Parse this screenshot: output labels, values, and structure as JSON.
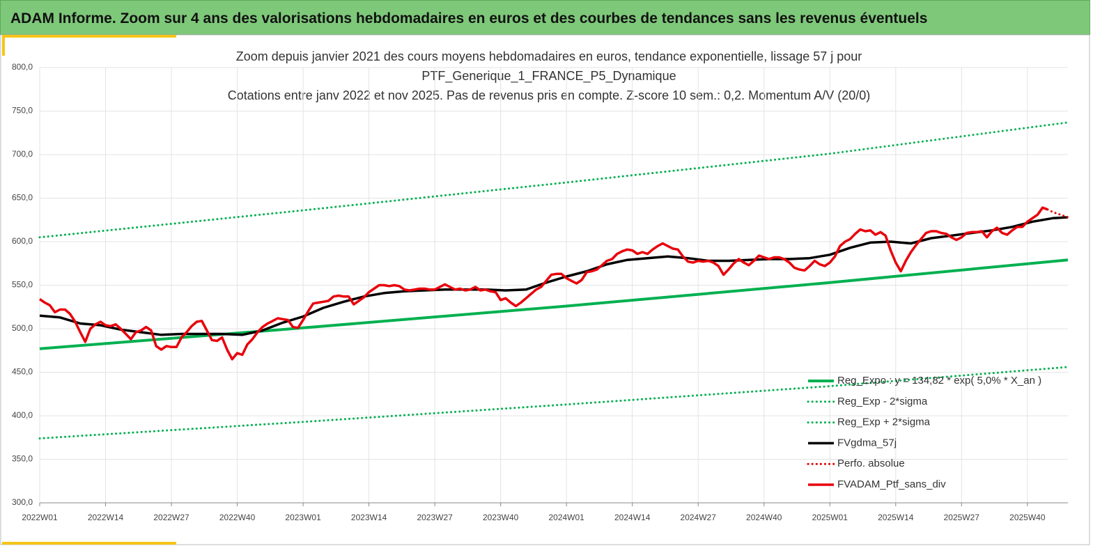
{
  "header": {
    "title": "ADAM Informe. Zoom sur 4 ans des valorisations hebdomadaires en euros et des courbes de tendances sans les revenus éventuels"
  },
  "chart_data": {
    "type": "line",
    "title": [
      "Zoom depuis janvier 2021 des cours moyens hebdomadaires  en euros, tendance exponentielle, lissage 57 j pour",
      "PTF_Generique_1_FRANCE_P5_Dynamique",
      "Cotations  entre janv 2022 et nov 2025. Pas de revenus pris en compte. Z-score 10 sem.: 0,2. Momentum A/V (20/0)"
    ],
    "xlim": [
      0,
      203
    ],
    "xticks": [
      {
        "value": 0,
        "label": "2022W01"
      },
      {
        "value": 13,
        "label": "2022W14"
      },
      {
        "value": 26,
        "label": "2022W27"
      },
      {
        "value": 39,
        "label": "2022W40"
      },
      {
        "value": 52,
        "label": "2023W01"
      },
      {
        "value": 65,
        "label": "2023W14"
      },
      {
        "value": 78,
        "label": "2023W27"
      },
      {
        "value": 91,
        "label": "2023W40"
      },
      {
        "value": 104,
        "label": "2024W01"
      },
      {
        "value": 117,
        "label": "2024W14"
      },
      {
        "value": 130,
        "label": "2024W27"
      },
      {
        "value": 143,
        "label": "2024W40"
      },
      {
        "value": 156,
        "label": "2025W01"
      },
      {
        "value": 169,
        "label": "2025W14"
      },
      {
        "value": 182,
        "label": "2025W27"
      },
      {
        "value": 195,
        "label": "2025W40"
      }
    ],
    "ylim": [
      300,
      800
    ],
    "yticks": [
      {
        "value": 300,
        "label": "300,0"
      },
      {
        "value": 350,
        "label": "350,0"
      },
      {
        "value": 400,
        "label": "400,0"
      },
      {
        "value": 450,
        "label": "450,0"
      },
      {
        "value": 500,
        "label": "500,0"
      },
      {
        "value": 550,
        "label": "550,0"
      },
      {
        "value": 600,
        "label": "600,0"
      },
      {
        "value": 650,
        "label": "650,0"
      },
      {
        "value": 700,
        "label": "700,0"
      },
      {
        "value": 750,
        "label": "750,0"
      },
      {
        "value": 800,
        "label": "800,0"
      }
    ],
    "grid": true,
    "legend": "bottom-right",
    "series": [
      {
        "name": "Reg_Expo : y = 134,82 * exp( 5,0% *  X_an )",
        "color": "#00b050",
        "style": "solid",
        "x": [
          0,
          52,
          104,
          156,
          203
        ],
        "values": [
          477,
          501,
          526,
          553,
          579
        ]
      },
      {
        "name": "Reg_Exp - 2*sigma",
        "color": "#00b050",
        "style": "dotted",
        "x": [
          0,
          52,
          104,
          156,
          203
        ],
        "values": [
          374,
          393,
          413,
          434,
          456
        ]
      },
      {
        "name": "Reg_Exp + 2*sigma",
        "color": "#00b050",
        "style": "dotted",
        "x": [
          0,
          52,
          104,
          156,
          203
        ],
        "values": [
          605,
          636,
          668,
          701,
          737
        ]
      },
      {
        "name": "FVgdma_57j",
        "color": "#000000",
        "style": "solid",
        "x": [
          0,
          4,
          8,
          12,
          16,
          20,
          24,
          28,
          32,
          36,
          40,
          44,
          48,
          52,
          56,
          60,
          64,
          68,
          72,
          76,
          80,
          84,
          88,
          92,
          96,
          100,
          104,
          108,
          112,
          116,
          120,
          124,
          128,
          132,
          136,
          140,
          144,
          148,
          152,
          156,
          160,
          164,
          168,
          172,
          176,
          180,
          184,
          188,
          192,
          196,
          200,
          203
        ],
        "values": [
          515,
          513,
          506,
          504,
          499,
          496,
          493,
          494,
          494,
          494,
          493,
          498,
          507,
          514,
          524,
          531,
          537,
          541,
          543,
          544,
          545,
          545,
          545,
          544,
          545,
          553,
          560,
          566,
          574,
          579,
          581,
          583,
          581,
          578,
          578,
          579,
          580,
          580,
          581,
          585,
          593,
          599,
          600,
          598,
          604,
          607,
          610,
          613,
          617,
          623,
          627,
          628
        ]
      },
      {
        "name": "Perfo. absolue",
        "color": "#e00000",
        "style": "dotted",
        "x": [
          199,
          200,
          201,
          202,
          203
        ],
        "values": [
          637,
          634,
          632,
          630,
          628
        ]
      },
      {
        "name": "FVADAM_Ptf_sans_div",
        "color": "#e8000b",
        "style": "solid",
        "values": [
          534,
          530,
          527,
          519,
          522,
          522,
          517,
          508,
          496,
          485,
          500,
          505,
          508,
          504,
          503,
          505,
          500,
          494,
          488,
          496,
          498,
          502,
          498,
          480,
          476,
          480,
          479,
          479,
          490,
          496,
          503,
          508,
          509,
          498,
          487,
          486,
          490,
          476,
          465,
          472,
          470,
          482,
          488,
          496,
          502,
          506,
          509,
          512,
          511,
          510,
          502,
          501,
          510,
          520,
          529,
          530,
          531,
          532,
          537,
          538,
          537,
          537,
          528,
          532,
          536,
          542,
          546,
          550,
          550,
          549,
          550,
          549,
          545,
          544,
          545,
          546,
          546,
          545,
          545,
          548,
          551,
          548,
          545,
          546,
          544,
          545,
          548,
          544,
          545,
          543,
          542,
          533,
          535,
          530,
          526,
          530,
          535,
          540,
          545,
          548,
          555,
          562,
          563,
          563,
          558,
          555,
          552,
          556,
          565,
          566,
          568,
          573,
          578,
          580,
          586,
          589,
          591,
          590,
          586,
          588,
          586,
          591,
          595,
          598,
          595,
          592,
          591,
          583,
          577,
          576,
          578,
          577,
          578,
          576,
          572,
          562,
          568,
          575,
          580,
          576,
          573,
          578,
          584,
          582,
          580,
          582,
          582,
          580,
          576,
          570,
          568,
          567,
          572,
          578,
          574,
          572,
          576,
          583,
          595,
          600,
          603,
          609,
          614,
          612,
          613,
          608,
          611,
          607,
          590,
          576,
          566,
          578,
          588,
          596,
          603,
          610,
          612,
          612,
          610,
          609,
          605,
          602,
          605,
          610,
          611,
          611,
          612,
          605,
          612,
          616,
          610,
          608,
          613,
          617,
          617,
          623,
          627,
          631,
          639,
          637
        ]
      }
    ]
  }
}
